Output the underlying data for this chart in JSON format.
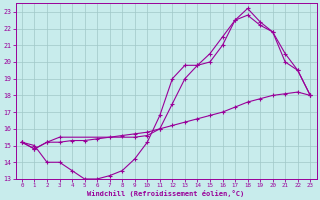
{
  "xlabel": "Windchill (Refroidissement éolien,°C)",
  "xlim": [
    -0.5,
    23.5
  ],
  "ylim": [
    13,
    23.5
  ],
  "xticks": [
    0,
    1,
    2,
    3,
    4,
    5,
    6,
    7,
    8,
    9,
    10,
    11,
    12,
    13,
    14,
    15,
    16,
    17,
    18,
    19,
    20,
    21,
    22,
    23
  ],
  "yticks": [
    13,
    14,
    15,
    16,
    17,
    18,
    19,
    20,
    21,
    22,
    23
  ],
  "background_color": "#c8ecec",
  "grid_color": "#a0c8c8",
  "line_color": "#990099",
  "line1_x": [
    0,
    1,
    2,
    3,
    4,
    5,
    6,
    7,
    8,
    9,
    10,
    11,
    12,
    13,
    14,
    15,
    16,
    17,
    18,
    19,
    20,
    21,
    22,
    23
  ],
  "line1_y": [
    15.2,
    15.0,
    14.0,
    14.0,
    13.5,
    13.0,
    13.0,
    13.2,
    13.5,
    14.2,
    15.2,
    16.8,
    19.0,
    19.8,
    19.8,
    20.0,
    21.0,
    22.5,
    23.2,
    22.4,
    21.8,
    20.5,
    19.5,
    18.0
  ],
  "line2_x": [
    0,
    1,
    2,
    3,
    4,
    5,
    6,
    7,
    8,
    9,
    10,
    11,
    12,
    13,
    14,
    15,
    16,
    17,
    18,
    19,
    20,
    21,
    22,
    23
  ],
  "line2_y": [
    15.2,
    14.8,
    15.2,
    15.2,
    15.3,
    15.3,
    15.4,
    15.5,
    15.6,
    15.7,
    15.8,
    16.0,
    16.2,
    16.4,
    16.6,
    16.8,
    17.0,
    17.3,
    17.6,
    17.8,
    18.0,
    18.1,
    18.2,
    18.0
  ],
  "line3_x": [
    0,
    1,
    2,
    3,
    9,
    10,
    11,
    12,
    13,
    14,
    15,
    16,
    17,
    18,
    19,
    20,
    21,
    22,
    23
  ],
  "line3_y": [
    15.2,
    14.8,
    15.2,
    15.5,
    15.5,
    15.6,
    16.0,
    17.5,
    19.0,
    19.8,
    20.5,
    21.5,
    22.5,
    22.8,
    22.2,
    21.8,
    20.0,
    19.5,
    18.0
  ]
}
